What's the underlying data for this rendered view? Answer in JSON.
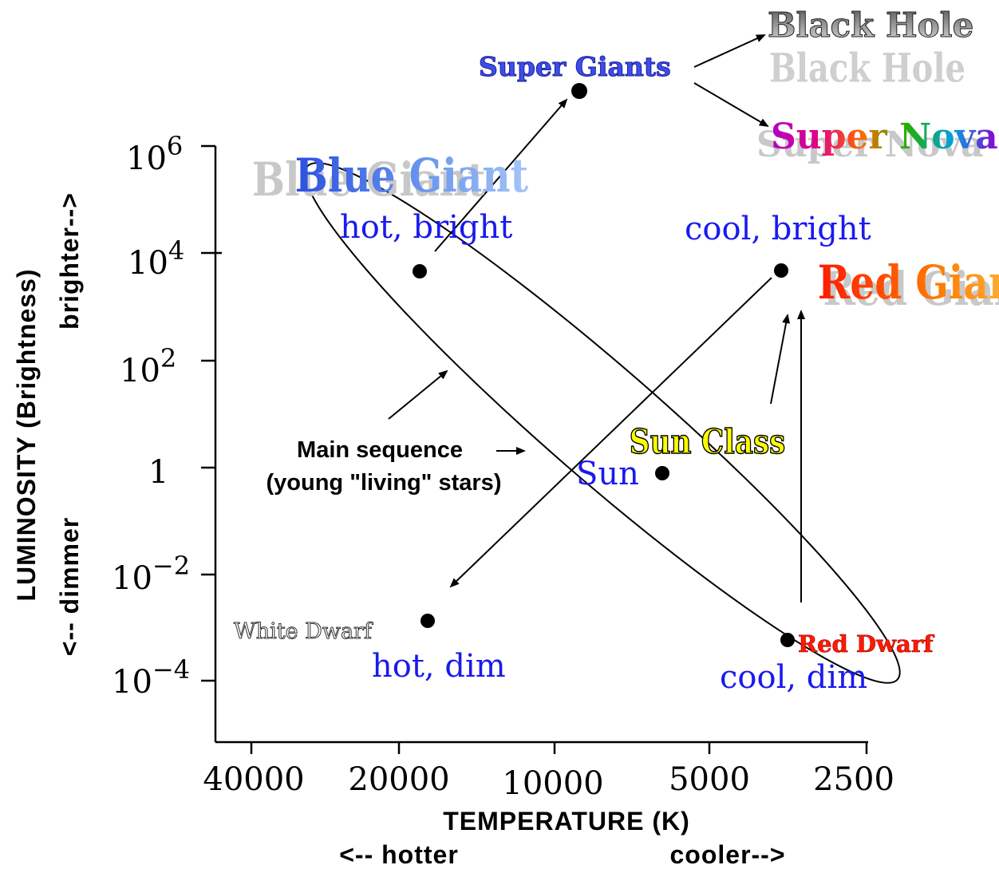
{
  "axes": {
    "x_title": "TEMPERATURE (K)",
    "x_hint_left": "<-- hotter",
    "x_hint_right": "cooler-->",
    "y_title": "LUMINOSITY (Brightness)",
    "y_hint_top": "brighter-->",
    "y_hint_bottom": "<-- dimmer",
    "x_ticks": [
      "40000",
      "20000",
      "10000",
      "5000",
      "2500"
    ],
    "y_ticks": [
      {
        "base": "10",
        "exp": "6"
      },
      {
        "base": "10",
        "exp": "4"
      },
      {
        "base": "10",
        "exp": "2"
      },
      {
        "base": "1",
        "exp": ""
      },
      {
        "base": "10",
        "exp": "−2"
      },
      {
        "base": "10",
        "exp": "−4"
      }
    ]
  },
  "quadrant_labels": {
    "hot_bright": "hot, bright",
    "cool_bright": "cool, bright",
    "hot_dim": "hot, dim",
    "cool_dim": "cool, dim",
    "sun": "Sun"
  },
  "star_labels": {
    "super_giants": "Super Giants",
    "black_hole": "Black Hole",
    "super_nova": "Super Nova",
    "blue_giant": "Blue Giant",
    "red_giant": "Red Giant",
    "sun_class": "Sun Class",
    "white_dwarf": "White Dwarf",
    "red_dwarf": "Red Dwarf"
  },
  "main_sequence": {
    "line1": "Main sequence",
    "line2": "(young \"living\" stars)"
  },
  "colors": {
    "blue_label": "#1a1aee",
    "red_dwarf": "#ff1a00",
    "sun_class_fill": "#ffff00",
    "super_giants_fill": "#3b4fe8"
  }
}
